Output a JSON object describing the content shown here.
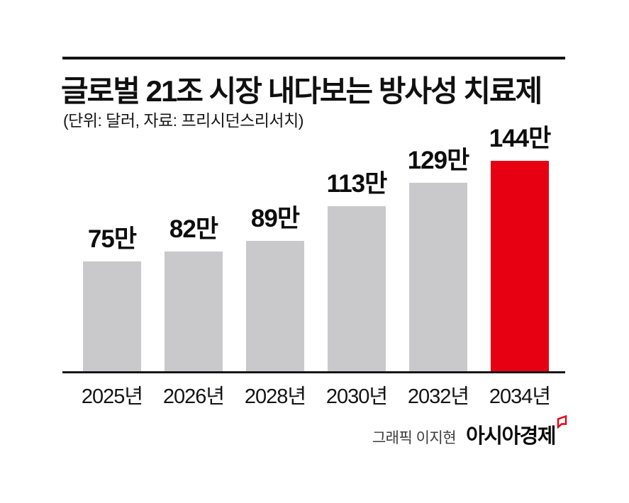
{
  "header": {
    "title": "글로벌 21조 시장 내다보는 방사성 치료제",
    "subtitle": "(단위: 달러, 자료: 프리시던스리서치)"
  },
  "chart_data": {
    "type": "bar",
    "title": "글로벌 21조 시장 내다보는 방사성 치료제",
    "unit_source_note": "(단위: 달러, 자료: 프리시던스리서치)",
    "categories": [
      "2025년",
      "2026년",
      "2028년",
      "2030년",
      "2032년",
      "2034년"
    ],
    "values": [
      75,
      82,
      89,
      113,
      129,
      144
    ],
    "value_labels": [
      "75만",
      "82만",
      "89만",
      "113만",
      "129만",
      "144만"
    ],
    "xlabel": "",
    "ylabel": "",
    "ylim": [
      0,
      163
    ],
    "grid": false,
    "legend": "none",
    "bar_color_default": "#c9c9cb",
    "bar_color_highlight": "#e60012",
    "highlight_index": 5
  },
  "footer": {
    "credit": "그래픽 이지현",
    "brand": "아시아경제",
    "brand_mark_color": "#e60012"
  }
}
